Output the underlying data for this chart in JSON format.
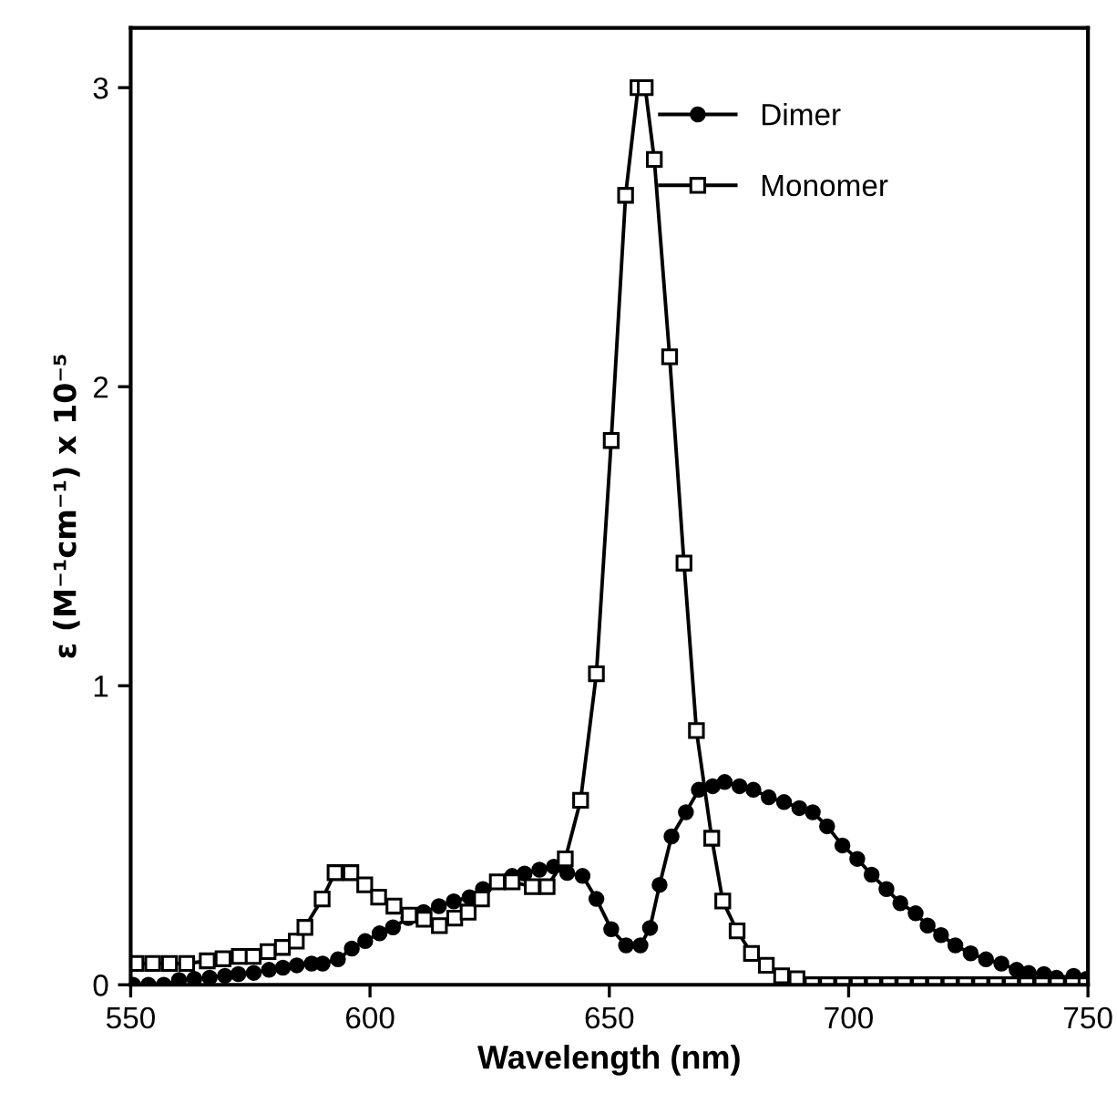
{
  "chart_data": {
    "type": "line",
    "xlabel": "Wavelength (nm)",
    "ylabel": "ε (M⁻¹cm⁻¹) x 10⁻⁵",
    "xlim": [
      550,
      750
    ],
    "xticks": [
      550,
      600,
      650,
      700,
      750
    ],
    "ylim": [
      0,
      3.2
    ],
    "yticks": [
      0,
      1,
      2,
      3
    ],
    "grid": false,
    "legend": "top right",
    "line_style": "solid",
    "series": [
      {
        "name": "Dimer",
        "color": "#000000",
        "marker": "circle",
        "x": [
          550.5,
          553.7,
          556.9,
          560.1,
          563.3,
          566.5,
          569.7,
          572.5,
          575.7,
          578.9,
          581.8,
          584.7,
          587.8,
          590.1,
          593.3,
          596.2,
          599,
          602,
          604.8,
          608,
          611.2,
          614.4,
          617.5,
          620.8,
          623.6,
          626.9,
          629.7,
          632.3,
          635.4,
          638.4,
          641.2,
          644.4,
          647.3,
          650.4,
          653.5,
          656.5,
          658.5,
          660.5,
          663,
          666,
          668.7,
          671.6,
          674.1,
          677.2,
          680.1,
          683.3,
          686.5,
          689.7,
          692.5,
          695.5,
          698.7,
          701.8,
          704.8,
          707.9,
          710.8,
          714,
          716.5,
          719.3,
          722.3,
          725.5,
          728.7,
          731.9,
          735.1,
          737.6,
          740.8,
          743.4,
          747,
          749.7
        ],
        "values": [
          0,
          0,
          0,
          0.016,
          0.02,
          0.024,
          0.03,
          0.036,
          0.04,
          0.05,
          0.057,
          0.065,
          0.071,
          0.071,
          0.085,
          0.121,
          0.146,
          0.172,
          0.192,
          0.223,
          0.243,
          0.263,
          0.279,
          0.293,
          0.32,
          0.344,
          0.364,
          0.372,
          0.385,
          0.395,
          0.374,
          0.364,
          0.287,
          0.186,
          0.132,
          0.132,
          0.19,
          0.334,
          0.496,
          0.577,
          0.652,
          0.664,
          0.678,
          0.664,
          0.652,
          0.627,
          0.611,
          0.591,
          0.577,
          0.53,
          0.466,
          0.421,
          0.368,
          0.32,
          0.273,
          0.239,
          0.198,
          0.166,
          0.132,
          0.105,
          0.085,
          0.071,
          0.05,
          0.04,
          0.036,
          0.024,
          0.03,
          0.02
        ]
      },
      {
        "name": "Monomer",
        "color": "#000000",
        "marker": "square",
        "x": [
          551.1,
          554.6,
          558.1,
          561.7,
          566,
          569.3,
          572.7,
          575.6,
          578.7,
          581.7,
          584.6,
          586.4,
          590,
          592.7,
          596,
          598.9,
          601.8,
          605,
          608.2,
          611.3,
          614.5,
          617.7,
          620.5,
          623.3,
          626.6,
          629.7,
          633.9,
          637,
          640.8,
          644,
          647.3,
          650.4,
          653.4,
          656,
          657.5,
          659.4,
          662.6,
          665.6,
          668.2,
          671.4,
          673.7,
          676.7,
          679.7,
          682.8,
          686,
          689.2,
          692.4,
          695.6,
          698.8,
          702,
          705.2,
          708.4,
          711.6,
          714.8,
          718,
          721.2,
          724.4,
          727.6,
          730.8,
          734,
          737.2,
          740.4,
          743.6,
          746.8,
          749.6
        ],
        "values": [
          0.071,
          0.071,
          0.071,
          0.071,
          0.08,
          0.087,
          0.095,
          0.095,
          0.111,
          0.125,
          0.146,
          0.192,
          0.287,
          0.375,
          0.375,
          0.334,
          0.293,
          0.263,
          0.233,
          0.219,
          0.198,
          0.223,
          0.243,
          0.287,
          0.344,
          0.344,
          0.328,
          0.328,
          0.421,
          0.617,
          1.04,
          1.82,
          2.64,
          3.0,
          3.0,
          2.76,
          2.1,
          1.41,
          0.85,
          0.49,
          0.28,
          0.18,
          0.105,
          0.065,
          0.03,
          0.02,
          0,
          0,
          0,
          0,
          0,
          0,
          0,
          0,
          0,
          0,
          0,
          0,
          0,
          0,
          0,
          0,
          0,
          0,
          0
        ]
      }
    ]
  }
}
